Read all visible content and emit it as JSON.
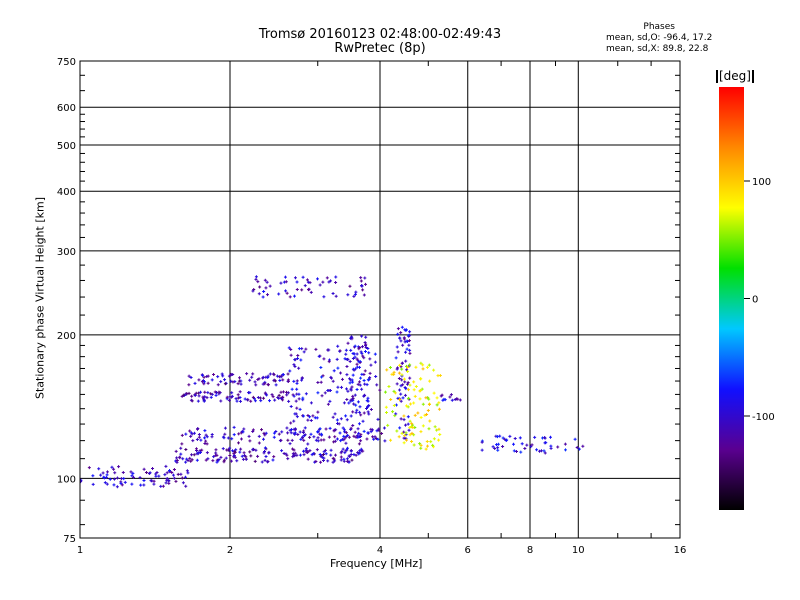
{
  "header": {
    "title_line1": "Tromsø 20160123 02:48:00-02:49:43",
    "title_line2": "RwPretec (8p)"
  },
  "stats": {
    "heading": "Phases",
    "line_o": "mean, sd,O: -96.4, 17.2",
    "line_x": "mean, sd,X:  89.8, 22.8"
  },
  "axes": {
    "xlabel": "Frequency [MHz]",
    "ylabel": "Stationary phase Virtual Height [km]"
  },
  "colorbar": {
    "unit": "[deg]",
    "ticks": [
      "100",
      "0",
      "-100"
    ],
    "tick_values": [
      100,
      0,
      -100
    ],
    "range": [
      -180,
      180
    ],
    "colors": [
      "#000000",
      "#5a0090",
      "#1010ff",
      "#00c8ff",
      "#00e000",
      "#ffff00",
      "#ff8800",
      "#ff0000"
    ]
  },
  "chart_data": {
    "type": "scatter",
    "title": "Tromsø 20160123 02:48:00-02:49:43",
    "subtitle": "RwPretec (8p)",
    "xlabel": "Frequency [MHz]",
    "ylabel": "Stationary phase Virtual Height [km]",
    "xscale": "log",
    "yscale": "log",
    "xlim": [
      1,
      16
    ],
    "ylim": [
      75,
      750
    ],
    "xticks": [
      1,
      2,
      4,
      6,
      8,
      10,
      16
    ],
    "xtick_labels": [
      "1",
      "2",
      "4",
      "6",
      "8",
      "10",
      "16"
    ],
    "yticks": [
      75,
      100,
      200,
      300,
      400,
      500,
      600,
      750
    ],
    "ytick_labels": [
      "75",
      "100",
      "200",
      "300",
      "400",
      "500",
      "600",
      "750"
    ],
    "grid": true,
    "color_scale": "phase [deg]",
    "traces": [
      {
        "x_range": [
          1.0,
          1.65
        ],
        "y_range": [
          96,
          106
        ],
        "phase": -105,
        "count": 80
      },
      {
        "x_range": [
          1.55,
          3.7
        ],
        "y_range": [
          108,
          116
        ],
        "phase": -110,
        "count": 170
      },
      {
        "x_range": [
          1.6,
          4.2
        ],
        "y_range": [
          118,
          128
        ],
        "phase": -105,
        "count": 120
      },
      {
        "x_range": [
          1.6,
          2.8
        ],
        "y_range": [
          145,
          152
        ],
        "phase": -110,
        "count": 90
      },
      {
        "x_range": [
          1.65,
          2.8
        ],
        "y_range": [
          157,
          166
        ],
        "phase": -110,
        "count": 80
      },
      {
        "x_range": [
          2.2,
          3.8
        ],
        "y_range": [
          240,
          265
        ],
        "phase": -105,
        "count": 60
      },
      {
        "x_range": [
          2.6,
          4.0
        ],
        "y_range": [
          120,
          190
        ],
        "phase": -100,
        "count": 180
      },
      {
        "x_range": [
          3.4,
          3.8
        ],
        "y_range": [
          130,
          200
        ],
        "phase": -100,
        "count": 60
      },
      {
        "x_range": [
          4.3,
          4.6
        ],
        "y_range": [
          120,
          210
        ],
        "phase": -100,
        "count": 70
      },
      {
        "x_range": [
          4.1,
          5.3
        ],
        "y_range": [
          115,
          175
        ],
        "phase": 80,
        "count": 110
      },
      {
        "x_range": [
          5.3,
          5.8
        ],
        "y_range": [
          145,
          150
        ],
        "phase": -100,
        "count": 12
      },
      {
        "x_range": [
          6.3,
          10.5
        ],
        "y_range": [
          113,
          123
        ],
        "phase": -95,
        "count": 50
      }
    ]
  }
}
